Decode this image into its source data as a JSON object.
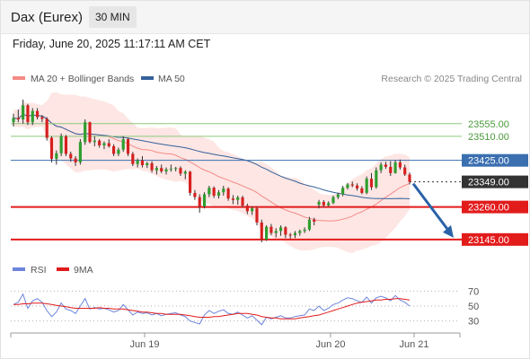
{
  "header": {
    "instrument": "Dax (Eurex)",
    "timeframe": "30 MIN"
  },
  "timestamp": "Friday, June 20, 2025 11:17:11 AM CET",
  "legend": {
    "ma20": "MA 20 + Bollinger Bands",
    "ma50": "MA 50",
    "rsi": "RSI",
    "rsi_ma": "9MA"
  },
  "credit": "Research © 2025 Trading Central",
  "colors": {
    "ma20": "#f48a86",
    "ma50": "#34619a",
    "bollinger_fill": "#fde3e1",
    "candle_bull": "#2e9e2e",
    "candle_bear": "#d62020",
    "resistance": "#8cc97a",
    "pivot": "#3a6fb0",
    "support": "#e21b1b",
    "last_price": "#333333",
    "arrow": "#2a62a8",
    "rsi": "#6c85db",
    "rsi_ma": "#e21b1b"
  },
  "chart_data": [
    {
      "type": "candlestick",
      "name": "price",
      "ylim": [
        23100,
        23640
      ],
      "x_ticks": [
        "Jun 19",
        "Jun 20",
        "Jun 21"
      ],
      "levels": [
        {
          "label": "23555.00",
          "value": 23555,
          "kind": "resistance"
        },
        {
          "label": "23510.00",
          "value": 23510,
          "kind": "resistance"
        },
        {
          "label": "23425.00",
          "value": 23425,
          "kind": "pivot"
        },
        {
          "label": "23349.00",
          "value": 23349,
          "kind": "last"
        },
        {
          "label": "23260.00",
          "value": 23260,
          "kind": "support"
        },
        {
          "label": "23145.00",
          "value": 23145,
          "kind": "support"
        }
      ],
      "candles": [
        [
          23560,
          23590,
          23545,
          23575
        ],
        [
          23575,
          23605,
          23560,
          23570
        ],
        [
          23570,
          23640,
          23555,
          23620
        ],
        [
          23620,
          23625,
          23550,
          23560
        ],
        [
          23560,
          23610,
          23550,
          23600
        ],
        [
          23600,
          23610,
          23570,
          23578
        ],
        [
          23578,
          23585,
          23560,
          23572
        ],
        [
          23572,
          23578,
          23495,
          23505
        ],
        [
          23505,
          23510,
          23418,
          23430
        ],
        [
          23430,
          23460,
          23410,
          23450
        ],
        [
          23450,
          23520,
          23440,
          23510
        ],
        [
          23510,
          23515,
          23440,
          23448
        ],
        [
          23448,
          23456,
          23420,
          23432
        ],
        [
          23432,
          23440,
          23405,
          23418
        ],
        [
          23418,
          23500,
          23410,
          23490
        ],
        [
          23490,
          23570,
          23480,
          23560
        ],
        [
          23560,
          23562,
          23485,
          23490
        ],
        [
          23490,
          23510,
          23475,
          23495
        ],
        [
          23495,
          23500,
          23470,
          23478
        ],
        [
          23478,
          23492,
          23465,
          23486
        ],
        [
          23486,
          23500,
          23470,
          23475
        ],
        [
          23475,
          23482,
          23440,
          23448
        ],
        [
          23448,
          23470,
          23440,
          23463
        ],
        [
          23463,
          23510,
          23455,
          23500
        ],
        [
          23500,
          23505,
          23440,
          23448
        ],
        [
          23448,
          23455,
          23405,
          23412
        ],
        [
          23412,
          23432,
          23400,
          23425
        ],
        [
          23425,
          23440,
          23400,
          23408
        ],
        [
          23408,
          23420,
          23398,
          23415
        ],
        [
          23415,
          23422,
          23382,
          23390
        ],
        [
          23390,
          23405,
          23375,
          23398
        ],
        [
          23398,
          23410,
          23380,
          23386
        ],
        [
          23386,
          23400,
          23375,
          23393
        ],
        [
          23393,
          23410,
          23385,
          23395
        ],
        [
          23395,
          23402,
          23386,
          23398
        ],
        [
          23398,
          23404,
          23370,
          23378
        ],
        [
          23378,
          23390,
          23358,
          23385
        ],
        [
          23385,
          23388,
          23300,
          23310
        ],
        [
          23310,
          23320,
          23285,
          23295
        ],
        [
          23295,
          23305,
          23240,
          23262
        ],
        [
          23262,
          23312,
          23255,
          23305
        ],
        [
          23305,
          23335,
          23295,
          23328
        ],
        [
          23328,
          23333,
          23292,
          23300
        ],
        [
          23300,
          23320,
          23290,
          23312
        ],
        [
          23312,
          23335,
          23300,
          23325
        ],
        [
          23325,
          23330,
          23282,
          23290
        ],
        [
          23290,
          23302,
          23270,
          23285
        ],
        [
          23285,
          23300,
          23268,
          23294
        ],
        [
          23294,
          23300,
          23260,
          23265
        ],
        [
          23265,
          23272,
          23235,
          23245
        ],
        [
          23245,
          23262,
          23232,
          23255
        ],
        [
          23255,
          23260,
          23195,
          23205
        ],
        [
          23205,
          23215,
          23135,
          23145
        ],
        [
          23145,
          23195,
          23140,
          23190
        ],
        [
          23190,
          23200,
          23160,
          23168
        ],
        [
          23168,
          23185,
          23152,
          23175
        ],
        [
          23175,
          23195,
          23158,
          23188
        ],
        [
          23188,
          23192,
          23150,
          23162
        ],
        [
          23162,
          23168,
          23148,
          23160
        ],
        [
          23160,
          23175,
          23150,
          23168
        ],
        [
          23168,
          23180,
          23158,
          23175
        ],
        [
          23175,
          23188,
          23168,
          23180
        ],
        [
          23180,
          23225,
          23175,
          23215
        ],
        [
          23215,
          23222,
          23195,
          23208
        ],
        [
          23268,
          23285,
          23255,
          23278
        ],
        [
          23278,
          23284,
          23260,
          23266
        ],
        [
          23266,
          23280,
          23262,
          23274
        ],
        [
          23274,
          23300,
          23270,
          23295
        ],
        [
          23295,
          23310,
          23288,
          23305
        ],
        [
          23305,
          23335,
          23298,
          23328
        ],
        [
          23328,
          23345,
          23322,
          23340
        ],
        [
          23340,
          23350,
          23330,
          23336
        ],
        [
          23336,
          23344,
          23318,
          23326
        ],
        [
          23326,
          23334,
          23305,
          23310
        ],
        [
          23310,
          23368,
          23305,
          23360
        ],
        [
          23360,
          23380,
          23320,
          23330
        ],
        [
          23330,
          23400,
          23325,
          23390
        ],
        [
          23390,
          23418,
          23380,
          23410
        ],
        [
          23410,
          23420,
          23395,
          23402
        ],
        [
          23402,
          23422,
          23370,
          23380
        ],
        [
          23380,
          23425,
          23378,
          23418
        ],
        [
          23418,
          23428,
          23392,
          23400
        ],
        [
          23400,
          23410,
          23370,
          23375
        ],
        [
          23375,
          23382,
          23340,
          23349
        ]
      ],
      "forecast_arrow": {
        "from": 23349,
        "to": 23145
      }
    },
    {
      "type": "line",
      "name": "rsi",
      "ylim": [
        20,
        80
      ],
      "y_ticks": [
        70,
        50,
        30
      ],
      "series": [
        {
          "name": "RSI",
          "values": [
            52,
            55,
            66,
            47,
            57,
            60,
            55,
            44,
            36,
            42,
            54,
            46,
            44,
            40,
            50,
            60,
            46,
            48,
            46,
            47,
            45,
            42,
            44,
            52,
            45,
            38,
            42,
            40,
            41,
            38,
            40,
            37,
            39,
            40,
            41,
            38,
            36,
            30,
            28,
            26,
            38,
            44,
            40,
            43,
            45,
            40,
            39,
            42,
            38,
            34,
            37,
            31,
            25,
            35,
            33,
            35,
            37,
            34,
            34,
            36,
            37,
            38,
            46,
            44,
            50,
            44,
            47,
            52,
            54,
            58,
            61,
            60,
            57,
            55,
            62,
            54,
            61,
            63,
            61,
            57,
            64,
            58,
            55,
            50
          ]
        },
        {
          "name": "9MA",
          "values": [
            52,
            52,
            53,
            53,
            54,
            54,
            54,
            53,
            52,
            51,
            50,
            49,
            48,
            47,
            47,
            47,
            47,
            47,
            48,
            47,
            47,
            46,
            46,
            46,
            45,
            44,
            43,
            42,
            42,
            41,
            40,
            40,
            39,
            39,
            39,
            39,
            38,
            37,
            36,
            35,
            35,
            35,
            36,
            36,
            37,
            38,
            39,
            40,
            40,
            40,
            39,
            38,
            36,
            35,
            34,
            34,
            33,
            33,
            33,
            33,
            34,
            35,
            36,
            37,
            38,
            40,
            42,
            44,
            46,
            48,
            50,
            52,
            54,
            55,
            56,
            57,
            58,
            58,
            59,
            59,
            60,
            60,
            59,
            58
          ]
        }
      ]
    }
  ]
}
